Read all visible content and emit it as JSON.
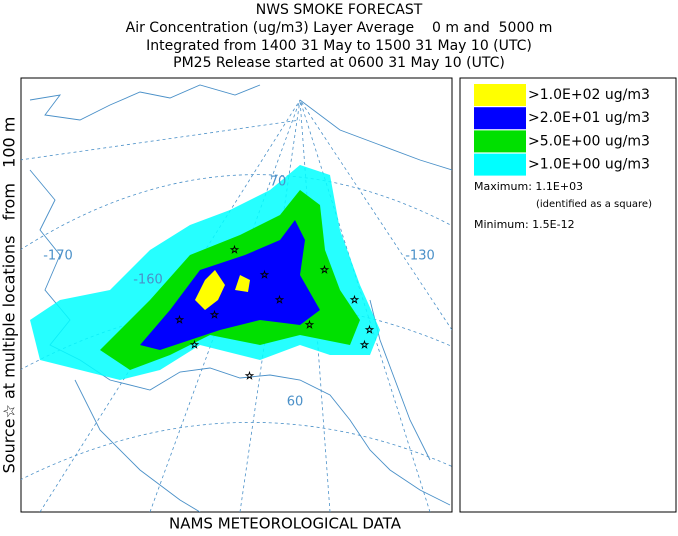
{
  "header": {
    "lines": [
      "NWS SMOKE FORECAST",
      "Air Concentration (ug/m3) Layer Average    0 m and  5000 m",
      "Integrated from 1400 31 May to 1500 31 May 10 (UTC)",
      "PM25 Release started at 0600 31 May 10 (UTC)"
    ]
  },
  "side_label": "Source☆ at multiple locations   from   100 m",
  "footer": "NAMS METEOROLOGICAL DATA",
  "map": {
    "labels": [
      "-170",
      "-160",
      "-130",
      "70",
      "60"
    ]
  },
  "legend": {
    "items": [
      {
        "label": ">1.0E+02 ug/m3",
        "color": "#ffff00"
      },
      {
        "label": ">2.0E+01 ug/m3",
        "color": "#0000ff"
      },
      {
        "label": ">5.0E+00 ug/m3",
        "color": "#00e000"
      },
      {
        "label": ">1.0E+00 ug/m3",
        "color": "#00ffff"
      }
    ],
    "maximum": "Maximum: 1.1E+03",
    "maximum_note": "(identified as a square)",
    "minimum": "Minimum: 1.5E-12"
  }
}
